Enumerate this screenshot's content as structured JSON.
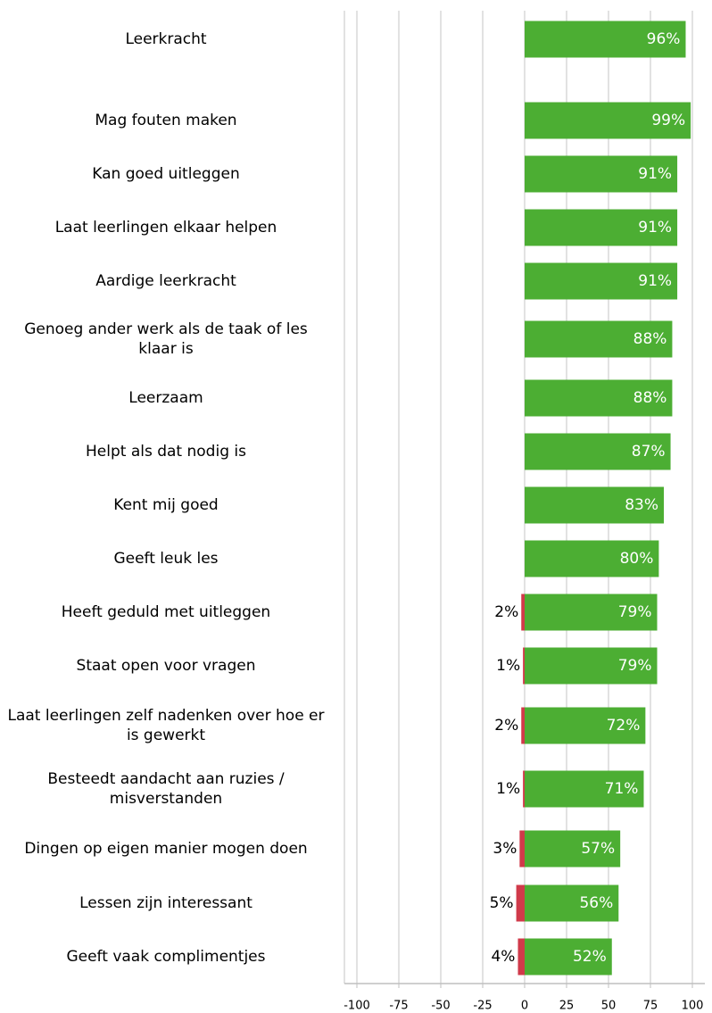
{
  "chart_data": {
    "type": "diverging-bar",
    "categories": [
      "Leerkracht",
      "Mag fouten maken",
      "Kan goed uitleggen",
      "Laat leerlingen elkaar helpen",
      "Aardige leerkracht",
      "Genoeg ander werk als de taak of les klaar is",
      "Leerzaam",
      "Helpt als dat nodig is",
      "Kent mij goed",
      "Geeft leuk les",
      "Heeft geduld met uitleggen",
      "Staat open voor vragen",
      "Laat leerlingen zelf nadenken over hoe er is gewerkt",
      "Besteedt aandacht aan ruzies / misverstanden",
      "Dingen op eigen manier mogen doen",
      "Lessen zijn interessant",
      "Geeft vaak complimentjes"
    ],
    "series": [
      {
        "color": "#4cae33",
        "values": [
          96,
          99,
          91,
          91,
          91,
          88,
          88,
          87,
          83,
          80,
          79,
          79,
          72,
          71,
          57,
          56,
          52
        ],
        "value_labels": [
          "96%",
          "99%",
          "91%",
          "91%",
          "91%",
          "88%",
          "88%",
          "87%",
          "83%",
          "80%",
          "79%",
          "79%",
          "72%",
          "71%",
          "57%",
          "56%",
          "52%"
        ]
      },
      {
        "color": "#d03a4a",
        "values": [
          null,
          null,
          null,
          null,
          null,
          null,
          null,
          null,
          null,
          null,
          -2,
          -1,
          -2,
          -1,
          -3,
          -5,
          -4
        ],
        "value_labels": [
          null,
          null,
          null,
          null,
          null,
          null,
          null,
          null,
          null,
          null,
          "2%",
          "1%",
          "2%",
          "1%",
          "3%",
          "5%",
          "4%"
        ]
      }
    ],
    "xlim": [
      -100,
      100
    ],
    "xticks": [
      -100,
      -75,
      -50,
      -25,
      0,
      25,
      50,
      75,
      100
    ],
    "grid": true
  }
}
